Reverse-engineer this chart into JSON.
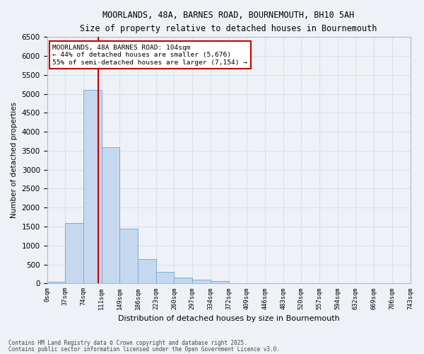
{
  "title_line1": "MOORLANDS, 48A, BARNES ROAD, BOURNEMOUTH, BH10 5AH",
  "title_line2": "Size of property relative to detached houses in Bournemouth",
  "xlabel": "Distribution of detached houses by size in Bournemouth",
  "ylabel": "Number of detached properties",
  "bar_color": "#c5d8ee",
  "bar_edge_color": "#7aafd4",
  "bin_labels": [
    "0sqm",
    "37sqm",
    "74sqm",
    "111sqm",
    "149sqm",
    "186sqm",
    "223sqm",
    "260sqm",
    "297sqm",
    "334sqm",
    "372sqm",
    "409sqm",
    "446sqm",
    "483sqm",
    "520sqm",
    "557sqm",
    "594sqm",
    "632sqm",
    "669sqm",
    "706sqm",
    "743sqm"
  ],
  "values": [
    50,
    1600,
    5100,
    3600,
    1450,
    650,
    300,
    160,
    90,
    60,
    0,
    0,
    0,
    0,
    0,
    0,
    0,
    0,
    0,
    0
  ],
  "ylim": [
    0,
    6500
  ],
  "yticks": [
    0,
    500,
    1000,
    1500,
    2000,
    2500,
    3000,
    3500,
    4000,
    4500,
    5000,
    5500,
    6000,
    6500
  ],
  "property_bin_index": 2.81,
  "property_label": "MOORLANDS, 48A BARNES ROAD: 104sqm",
  "pct_smaller": 44,
  "num_smaller": "5,676",
  "pct_larger": 55,
  "num_larger": "7,154",
  "vline_color": "#cc0000",
  "annotation_box_color": "#cc0000",
  "background_color": "#eef2f7",
  "grid_color": "#d8e0ea",
  "footnote1": "Contains HM Land Registry data © Crown copyright and database right 2025.",
  "footnote2": "Contains public sector information licensed under the Open Government Licence v3.0."
}
